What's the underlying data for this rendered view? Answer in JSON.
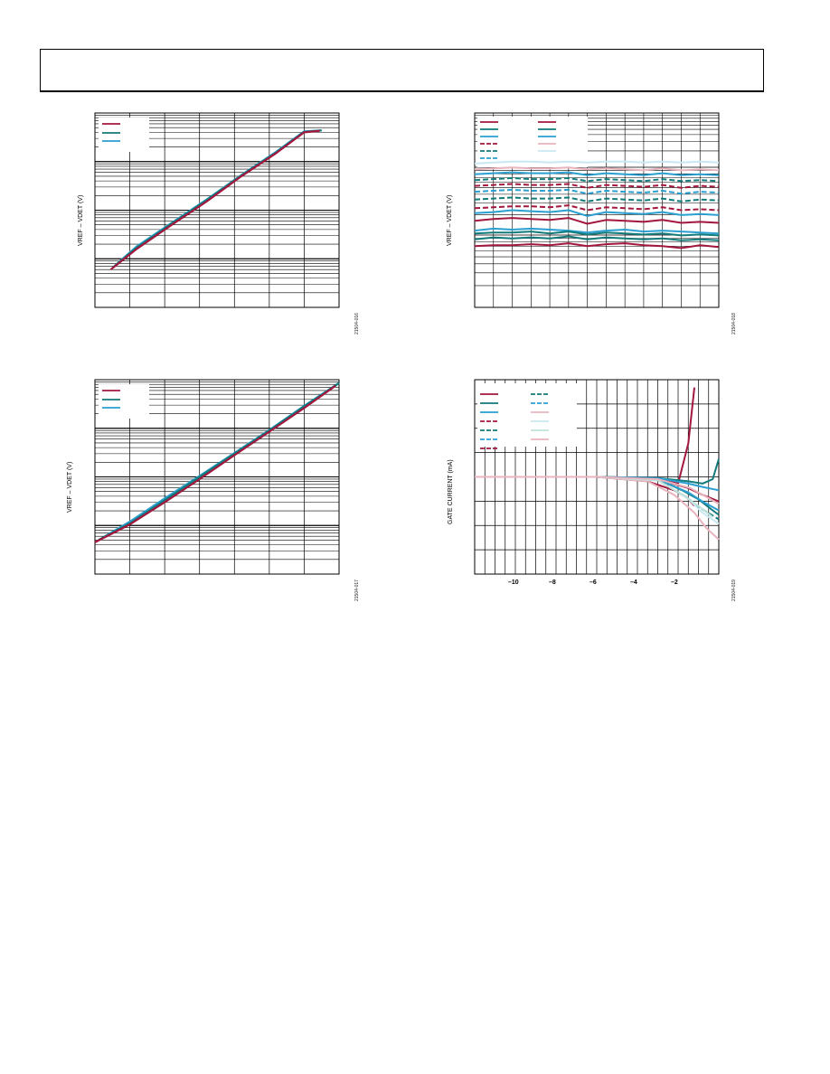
{
  "header": {
    "title": ""
  },
  "colors": {
    "crimson": "#a3173d",
    "teal": "#127a7a",
    "sky": "#2a9fd0",
    "pink": "#e8b4be",
    "pale": "#c9e8f2",
    "palegreen": "#bfe3db"
  },
  "charts": [
    {
      "id": "chart1",
      "ylabel": "VREF – VDET (V)",
      "fig_id": "21504-016"
    },
    {
      "id": "chart2",
      "ylabel": "VREF – VDET (V)",
      "fig_id": "21504-018"
    },
    {
      "id": "chart3",
      "ylabel": "VREF – VDET (V)",
      "fig_id": "21504-017"
    },
    {
      "id": "chart4",
      "ylabel": "GATE CURRENT (mA)",
      "fig_id": "21504-019",
      "xticks": [
        "–10",
        "–8",
        "–6",
        "–4",
        "–2"
      ]
    }
  ],
  "chart_data": [
    {
      "type": "line",
      "yscale": "log",
      "xlim": [
        0,
        7
      ],
      "ylim": [
        0.001,
        10
      ],
      "grid": true,
      "legend": "top-left",
      "series": [
        {
          "color": "crimson",
          "x": [
            0.45,
            1.2,
            2.2,
            3.2,
            4.2,
            5.2,
            6.0,
            6.45
          ],
          "y": [
            0.006,
            0.016,
            0.05,
            0.15,
            0.5,
            1.5,
            4.0,
            4.3
          ]
        },
        {
          "color": "teal",
          "x": [
            0.5,
            1.2,
            2.2,
            3.2,
            4.2,
            5.2,
            6.0,
            6.5
          ],
          "y": [
            0.0065,
            0.017,
            0.053,
            0.16,
            0.52,
            1.55,
            4.1,
            4.4
          ]
        },
        {
          "color": "sky",
          "x": [
            0.6,
            1.2,
            2.2,
            3.2,
            4.2,
            5.2,
            6.0,
            6.5
          ],
          "y": [
            0.0075,
            0.018,
            0.055,
            0.165,
            0.53,
            1.6,
            4.2,
            4.4
          ]
        }
      ]
    },
    {
      "type": "line",
      "ylim": [
        0,
        10
      ],
      "grid": true,
      "legend": "top-left",
      "series": [
        {
          "color": "crimson",
          "dash": false,
          "y": [
            3.15,
            3.2,
            3.2,
            3.25,
            3.2,
            3.3,
            3.15,
            3.25,
            3.3,
            3.2,
            3.15,
            3.05,
            3.2,
            3.1
          ]
        },
        {
          "color": "teal",
          "dash": false,
          "y": [
            3.5,
            3.6,
            3.55,
            3.6,
            3.55,
            3.65,
            3.5,
            3.6,
            3.55,
            3.5,
            3.55,
            3.45,
            3.5,
            3.45
          ]
        },
        {
          "color": "sky",
          "dash": false,
          "y": [
            3.95,
            4.05,
            4.0,
            4.05,
            4.0,
            3.95,
            3.85,
            3.95,
            4.0,
            3.9,
            3.95,
            3.9,
            3.85,
            3.8
          ]
        },
        {
          "color": "teal",
          "dash": false,
          "y": [
            3.8,
            3.85,
            3.85,
            3.9,
            3.8,
            3.9,
            3.75,
            3.85,
            3.8,
            3.75,
            3.8,
            3.7,
            3.75,
            3.7
          ]
        },
        {
          "color": "crimson",
          "dash": false,
          "y": [
            4.45,
            4.55,
            4.6,
            4.55,
            4.5,
            4.6,
            4.3,
            4.5,
            4.45,
            4.4,
            4.5,
            4.35,
            4.4,
            4.35
          ]
        },
        {
          "color": "sky",
          "dash": false,
          "y": [
            4.85,
            4.9,
            5.0,
            4.95,
            4.9,
            5.0,
            4.7,
            4.9,
            4.85,
            4.8,
            4.9,
            4.75,
            4.8,
            4.75
          ]
        },
        {
          "color": "crimson",
          "dash": true,
          "y": [
            5.1,
            5.15,
            5.2,
            5.2,
            5.15,
            5.25,
            5.0,
            5.15,
            5.1,
            5.05,
            5.15,
            5.0,
            5.05,
            5.0
          ]
        },
        {
          "color": "teal",
          "dash": true,
          "y": [
            5.55,
            5.6,
            5.65,
            5.6,
            5.6,
            5.65,
            5.45,
            5.6,
            5.55,
            5.5,
            5.6,
            5.45,
            5.55,
            5.5
          ]
        },
        {
          "color": "sky",
          "dash": true,
          "y": [
            5.95,
            6.0,
            6.05,
            6.0,
            6.0,
            6.05,
            5.85,
            6.0,
            5.95,
            5.9,
            6.0,
            5.85,
            5.95,
            5.9
          ]
        },
        {
          "color": "crimson",
          "dash": true,
          "y": [
            6.25,
            6.3,
            6.35,
            6.3,
            6.3,
            6.35,
            6.15,
            6.3,
            6.25,
            6.2,
            6.3,
            6.15,
            6.25,
            6.2
          ]
        },
        {
          "color": "teal",
          "dash": true,
          "y": [
            6.55,
            6.6,
            6.65,
            6.6,
            6.6,
            6.65,
            6.5,
            6.6,
            6.55,
            6.5,
            6.6,
            6.5,
            6.55,
            6.5
          ]
        },
        {
          "color": "sky",
          "dash": false,
          "y": [
            6.85,
            6.9,
            6.95,
            6.9,
            6.9,
            6.95,
            6.8,
            6.9,
            6.85,
            6.8,
            6.9,
            6.8,
            6.85,
            6.8
          ]
        },
        {
          "color": "pink",
          "dash": false,
          "y": [
            7.1,
            7.15,
            7.2,
            7.15,
            7.15,
            7.2,
            7.1,
            7.15,
            7.1,
            7.05,
            7.15,
            7.05,
            7.1,
            7.05
          ]
        },
        {
          "color": "pale",
          "dash": false,
          "y": [
            7.4,
            7.45,
            7.5,
            7.5,
            7.45,
            7.5,
            7.45,
            7.5,
            7.5,
            7.45,
            7.5,
            7.45,
            7.5,
            7.45
          ]
        }
      ]
    },
    {
      "type": "line",
      "yscale": "log",
      "xlim": [
        0,
        7
      ],
      "ylim": [
        0.001,
        10
      ],
      "grid": true,
      "legend": "top-left",
      "series": [
        {
          "color": "crimson",
          "x": [
            0.0,
            1.0,
            2.0,
            3.0,
            4.0,
            5.0,
            6.0,
            6.9
          ],
          "y": [
            0.0045,
            0.0105,
            0.03,
            0.09,
            0.28,
            0.85,
            2.6,
            7.5
          ]
        },
        {
          "color": "teal",
          "x": [
            0.1,
            1.0,
            2.0,
            3.0,
            4.0,
            5.0,
            6.0,
            7.0
          ],
          "y": [
            0.005,
            0.011,
            0.033,
            0.1,
            0.3,
            0.9,
            2.8,
            8.5
          ]
        },
        {
          "color": "sky",
          "x": [
            0.2,
            1.0,
            2.0,
            3.0,
            4.0,
            5.0,
            6.0,
            7.0
          ],
          "y": [
            0.0055,
            0.012,
            0.036,
            0.105,
            0.31,
            0.92,
            2.9,
            8.6
          ]
        }
      ]
    },
    {
      "type": "line",
      "xlim": [
        -12,
        0
      ],
      "ylim": [
        -4,
        4
      ],
      "grid": true,
      "legend": "top-left",
      "series": [
        {
          "color": "crimson",
          "dash": false,
          "x": [
            -12,
            -6,
            -3,
            -2,
            -1.5,
            -1.2
          ],
          "y": [
            0,
            0,
            -0.05,
            -0.3,
            1.5,
            4.0
          ]
        },
        {
          "color": "teal",
          "dash": false,
          "x": [
            -12,
            -6,
            -3,
            -1.5,
            -0.8,
            -0.3,
            0
          ],
          "y": [
            0,
            0,
            -0.05,
            -0.2,
            -0.3,
            -0.1,
            0.8
          ]
        },
        {
          "color": "sky",
          "dash": false,
          "x": [
            -12,
            -6,
            -3,
            -1.5,
            -0.8,
            0
          ],
          "y": [
            0,
            0,
            -0.05,
            -0.3,
            -0.45,
            -0.6
          ]
        },
        {
          "color": "crimson",
          "dash": false,
          "x": [
            -12,
            -6,
            -3,
            -1.5,
            -0.8,
            0
          ],
          "y": [
            0,
            0,
            -0.1,
            -0.5,
            -0.8,
            -1.1
          ]
        },
        {
          "color": "teal",
          "dash": false,
          "x": [
            -12,
            -6,
            -3,
            -1.8,
            -1.0,
            -0.3,
            0
          ],
          "y": [
            0,
            0,
            -0.1,
            -0.6,
            -1.0,
            -1.5,
            -1.7
          ]
        },
        {
          "color": "sky",
          "dash": false,
          "x": [
            -12,
            -6,
            -3,
            -1.5,
            -0.8,
            0
          ],
          "y": [
            0,
            0,
            -0.1,
            -0.7,
            -1.1,
            -1.5
          ]
        },
        {
          "color": "crimson",
          "dash": false,
          "x": [
            -12,
            -6,
            -3.5,
            -2.2,
            -1.6,
            -1.2
          ],
          "y": [
            0,
            0,
            -0.2,
            -0.6,
            -0.9,
            -1.3
          ]
        },
        {
          "color": "teal",
          "dash": true,
          "x": [
            -12,
            -6,
            -3,
            -1.6,
            -0.9,
            0
          ],
          "y": [
            0,
            0,
            -0.15,
            -0.9,
            -1.4,
            -1.9
          ]
        },
        {
          "color": "pink",
          "dash": false,
          "x": [
            -12,
            -6,
            -3.5,
            -2.2,
            -1.2,
            -0.6,
            0
          ],
          "y": [
            0,
            0,
            -0.2,
            -0.8,
            -1.6,
            -2.3,
            -2.8
          ]
        },
        {
          "color": "pale",
          "dash": false,
          "x": [
            -12,
            -6,
            -3,
            -1.6,
            -0.8,
            0
          ],
          "y": [
            0,
            0,
            -0.15,
            -0.9,
            -1.6,
            -2.1
          ]
        },
        {
          "color": "palegreen",
          "dash": false,
          "x": [
            -12,
            -6,
            -3,
            -1.8,
            -1.0,
            -0.3
          ],
          "y": [
            0,
            0,
            -0.15,
            -0.8,
            -1.3,
            -1.8
          ]
        },
        {
          "color": "pink",
          "dash": false,
          "x": [
            -12,
            -6,
            -3,
            -1.4,
            -0.6,
            0
          ],
          "y": [
            0,
            0,
            -0.1,
            -0.5,
            -0.9,
            -1.2
          ]
        }
      ]
    }
  ]
}
